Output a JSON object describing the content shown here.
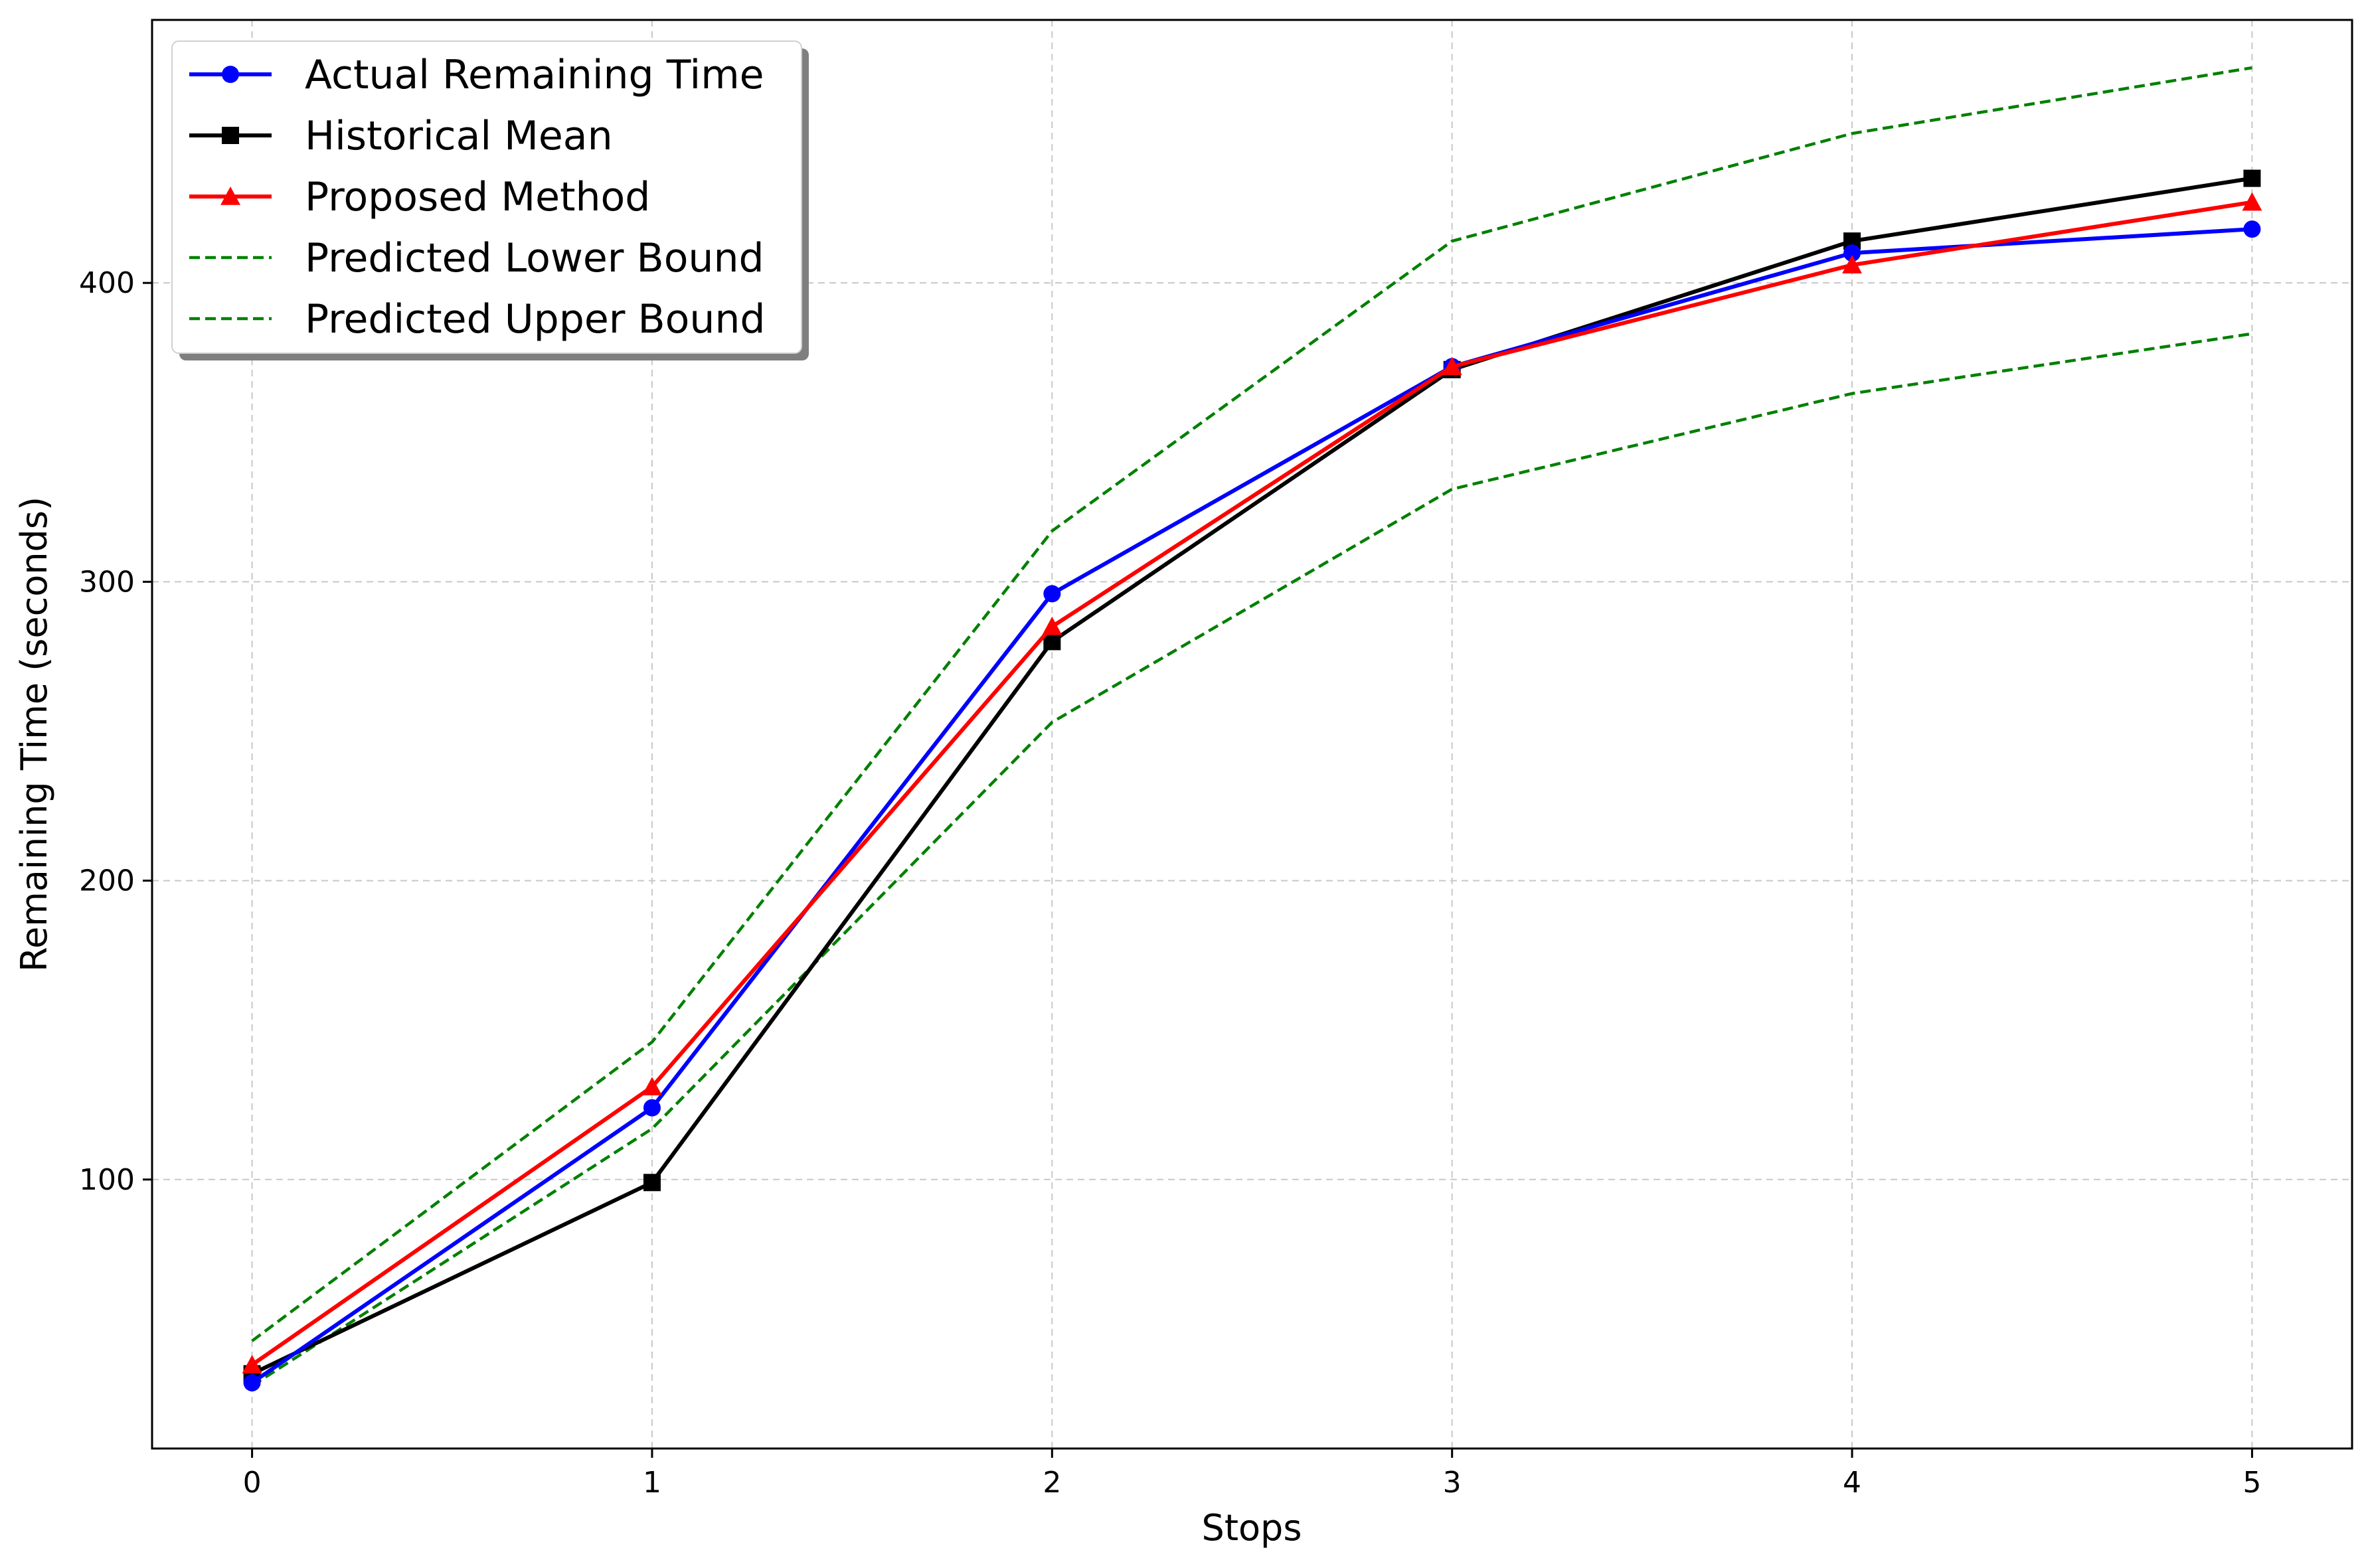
{
  "chart_data": {
    "type": "line",
    "title": "",
    "xlabel": "Stops",
    "ylabel": "Remaining Time (seconds)",
    "x": [
      0,
      1,
      2,
      3,
      4,
      5
    ],
    "x_ticks": [
      "0",
      "1",
      "2",
      "3",
      "4",
      "5"
    ],
    "y_ticks": [
      "100",
      "200",
      "300",
      "400"
    ],
    "y_tick_values": [
      100,
      200,
      300,
      400
    ],
    "xlim": [
      -0.25,
      5.25
    ],
    "ylim": [
      10,
      488
    ],
    "grid": true,
    "legend_position": "upper-left",
    "series": [
      {
        "name": "Actual Remaining Time",
        "values": [
          32,
          124,
          296,
          372,
          410,
          418
        ],
        "color": "#0000ff",
        "style": "solid",
        "marker": "circle"
      },
      {
        "name": "Historical Mean",
        "values": [
          35,
          99,
          280,
          371,
          414,
          435
        ],
        "color": "#000000",
        "style": "solid",
        "marker": "square"
      },
      {
        "name": "Proposed Method",
        "values": [
          38,
          131,
          285,
          372,
          406,
          427
        ],
        "color": "#ff0000",
        "style": "solid",
        "marker": "triangle"
      },
      {
        "name": "Predicted Lower Bound",
        "values": [
          31,
          117,
          253,
          331,
          363,
          383
        ],
        "color": "#008000",
        "style": "dashed",
        "marker": "none"
      },
      {
        "name": "Predicted Upper Bound",
        "values": [
          46,
          146,
          317,
          414,
          450,
          472
        ],
        "color": "#008000",
        "style": "dashed",
        "marker": "none"
      }
    ]
  }
}
